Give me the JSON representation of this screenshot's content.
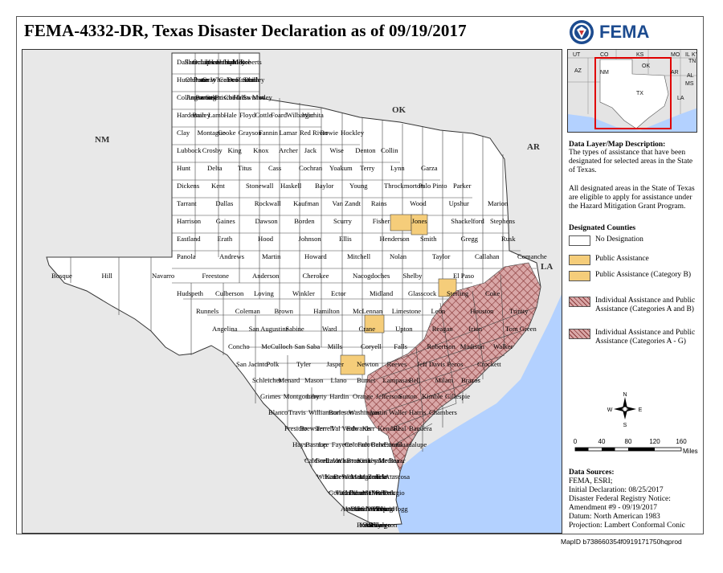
{
  "title": "FEMA-4332-DR, Texas Disaster Declaration as of 09/19/2017",
  "brand": {
    "name": "FEMA",
    "seal_icon": "dhs-seal-icon"
  },
  "map": {
    "state_labels": [
      "NM",
      "OK",
      "AR",
      "LA"
    ],
    "county_labels": [
      "Dallam",
      "Sherman",
      "Ochiltree",
      "Lipscomb",
      "Hansford",
      "Hemphill",
      "Hartley",
      "Moore",
      "Roberts",
      "Hutchinson",
      "Oldham",
      "Potter",
      "Gray",
      "Wheeler",
      "Carson",
      "Deaf Smith",
      "Randall",
      "Donley",
      "Collingsworth",
      "Armstrong",
      "Parmer",
      "Castro",
      "Briscoe",
      "Childress",
      "Hall",
      "Swisher",
      "Motley",
      "Hardeman",
      "Bailey",
      "Lamb",
      "Hale",
      "Floyd",
      "Cottle",
      "Foard",
      "Wilbarger",
      "Wichita",
      "Clay",
      "Montague",
      "Cooke",
      "Grayson",
      "Fannin",
      "Lamar",
      "Red River",
      "Bowie",
      "Hockley",
      "Lubbock",
      "Crosby",
      "King",
      "Knox",
      "Archer",
      "Jack",
      "Wise",
      "Denton",
      "Collin",
      "Hunt",
      "Delta",
      "Titus",
      "Cass",
      "Cochran",
      "Yoakum",
      "Terry",
      "Lynn",
      "Garza",
      "Dickens",
      "Kent",
      "Stonewall",
      "Haskell",
      "Baylor",
      "Young",
      "Throckmorton",
      "Palo Pinto",
      "Parker",
      "Tarrant",
      "Dallas",
      "Rockwall",
      "Kaufman",
      "Van Zandt",
      "Rains",
      "Wood",
      "Upshur",
      "Marion",
      "Harrison",
      "Gaines",
      "Dawson",
      "Borden",
      "Scurry",
      "Fisher",
      "Jones",
      "Shackelford",
      "Stephens",
      "Eastland",
      "Erath",
      "Hood",
      "Johnson",
      "Ellis",
      "Henderson",
      "Smith",
      "Gregg",
      "Rusk",
      "Panola",
      "Andrews",
      "Martin",
      "Howard",
      "Mitchell",
      "Nolan",
      "Taylor",
      "Callahan",
      "Comanche",
      "Bosque",
      "Hill",
      "Navarro",
      "Freestone",
      "Anderson",
      "Cherokee",
      "Nacogdoches",
      "Shelby",
      "El Paso",
      "Hudspeth",
      "Culberson",
      "Loving",
      "Winkler",
      "Ector",
      "Midland",
      "Glasscock",
      "Sterling",
      "Coke",
      "Runnels",
      "Coleman",
      "Brown",
      "Hamilton",
      "McLennan",
      "Limestone",
      "Leon",
      "Houston",
      "Trinity",
      "Angelina",
      "San Augustine",
      "Sabine",
      "Ward",
      "Crane",
      "Upton",
      "Reagan",
      "Irion",
      "Tom Green",
      "Concho",
      "McCulloch",
      "San Saba",
      "Mills",
      "Coryell",
      "Falls",
      "Robertson",
      "Madison",
      "Walker",
      "San Jacinto",
      "Polk",
      "Tyler",
      "Jasper",
      "Newton",
      "Reeves",
      "Jeff Davis",
      "Pecos",
      "Crockett",
      "Schleicher",
      "Menard",
      "Mason",
      "Llano",
      "Burnet",
      "Lampasas",
      "Bell",
      "Milam",
      "Brazos",
      "Grimes",
      "Montgomery",
      "Liberty",
      "Hardin",
      "Orange",
      "Jefferson",
      "Sutton",
      "Kimble",
      "Gillespie",
      "Blanco",
      "Travis",
      "Williamson",
      "Burleson",
      "Washington",
      "Austin",
      "Waller",
      "Harris",
      "Chambers",
      "Presidio",
      "Brewster",
      "Terrell",
      "Val Verde",
      "Edwards",
      "Kerr",
      "Kendall",
      "Real",
      "Bandera",
      "Hays",
      "Bastrop",
      "Lee",
      "Fayette",
      "Colorado",
      "Fort Bend",
      "Galveston",
      "Comal",
      "Guadalupe",
      "Caldwell",
      "Gonzales",
      "Lavaca",
      "Wharton",
      "Brazoria",
      "Kinney",
      "Uvalde",
      "Medina",
      "Bexar",
      "Wilson",
      "Karnes",
      "DeWitt",
      "Jackson",
      "Matagorda",
      "Maverick",
      "Zavala",
      "Frio",
      "Atascosa",
      "Goliad",
      "Victoria",
      "Calhoun",
      "Dimmit",
      "La Salle",
      "McMullen",
      "Live Oak",
      "Bee",
      "Refugio",
      "Aransas",
      "Webb",
      "Duval",
      "Jim Wells",
      "San Patricio",
      "Nueces",
      "Kleberg",
      "Zapata",
      "Jim Hogg",
      "Brooks",
      "Kenedy",
      "Starr",
      "Willacy",
      "Hidalgo",
      "Cameron"
    ]
  },
  "inset": {
    "labels": [
      "UT",
      "CO",
      "KS",
      "MO",
      "IL",
      "KY",
      "TN",
      "AZ",
      "NM",
      "OK",
      "AR",
      "MS",
      "AL",
      "TX",
      "LA"
    ]
  },
  "description": {
    "heading": "Data Layer/Map Description:",
    "text": "The types of assistance that have been designated for selected areas in the State of Texas.",
    "text2": "All designated areas in the State of Texas are eligible to apply for assistance under the Hazard Mitigation Grant Program."
  },
  "legend": {
    "heading": "Designated Counties",
    "items": [
      {
        "label": "No Designation",
        "color": "#ffffff"
      },
      {
        "label": "Public Assistance",
        "color": "#f5cd7a"
      },
      {
        "label": "Public Assistance (Category B)",
        "color": "#f5cd7a"
      },
      {
        "label": "Individual Assistance and Public Assistance (Categories A and B)",
        "color": "#d9a7a7"
      },
      {
        "label": "Individual Assistance and Public Assistance (Categories A - G)",
        "color": "#d9a7a7"
      }
    ]
  },
  "north_arrow": {
    "n": "N",
    "s": "S",
    "e": "E",
    "w": "W"
  },
  "scale": {
    "ticks": [
      "0",
      "40",
      "80",
      "120",
      "160"
    ],
    "unit": "Miles"
  },
  "sources": {
    "heading": "Data Sources:",
    "lines": [
      "FEMA, ESRI;",
      "Initial Declaration: 08/25/2017",
      "Disaster Federal Registry Notice:",
      "Amendment #9 - 09/19/2017",
      "Datum: North American 1983",
      "Projection: Lambert Conformal Conic"
    ]
  },
  "map_id": "MapID b738660354f0919171750hqprod",
  "colors": {
    "water": "#b3d1ff",
    "land_outside": "#e8e8e8",
    "texas": "#ffffff",
    "pa": "#f5cd7a",
    "ia": "#d9a7a7",
    "hatch": "#8a3a3a",
    "fema_blue": "#1c4b8f",
    "inset_box": "#e00000"
  }
}
